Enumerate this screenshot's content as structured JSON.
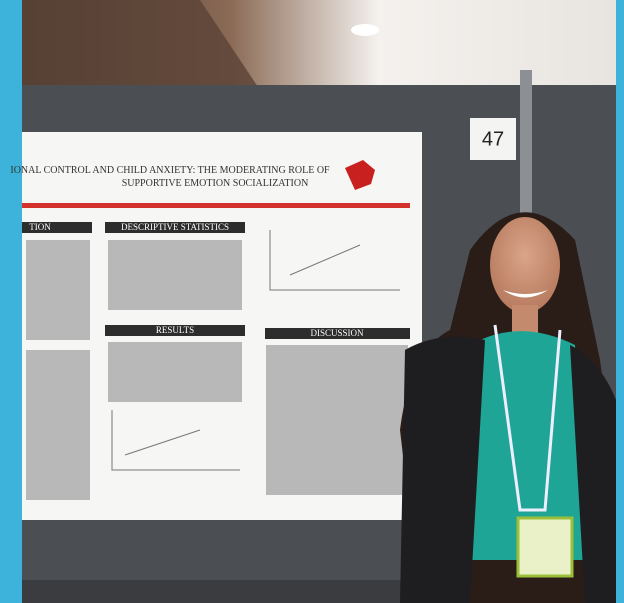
{
  "sign": {
    "number": "47"
  },
  "poster": {
    "title_line1": "IONAL CONTROL AND CHILD ANXIETY: THE MODERATING ROLE OF",
    "title_line2": "SUPPORTIVE  EMOTION SOCIALIZATION",
    "sections": [
      "TION",
      "DESCRIPTIVE STATISTICS",
      "RESULTS",
      "DISCUSSION"
    ]
  }
}
